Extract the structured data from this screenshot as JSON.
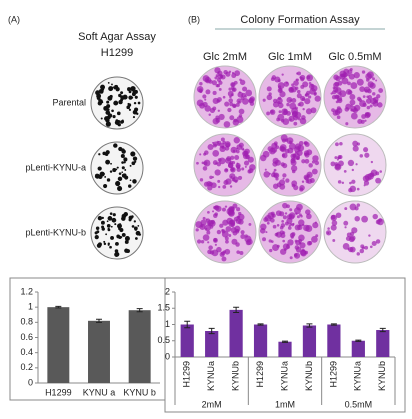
{
  "figure": {
    "panel_a": "(A)",
    "panel_b": "(B)",
    "title_a": "Soft Agar Assay",
    "subtitle_a": "H1299",
    "rows_a": [
      "Parental",
      "pLenti-KYNU-a",
      "pLenti-KYNU-b"
    ],
    "title_b": "Colony Formation Assay",
    "columns_b": [
      "Glc 2mM",
      "Glc 1mM",
      "Glc 0.5mM"
    ]
  },
  "chart_data": [
    {
      "type": "bar",
      "categories": [
        "H1299",
        "KYNU a",
        "KYNU b"
      ],
      "values": [
        1.0,
        0.82,
        0.96
      ],
      "errors": [
        0.01,
        0.02,
        0.02
      ],
      "color": "#595959",
      "ylim": [
        0,
        1.2
      ],
      "yticks": [
        0,
        0.2,
        0.4,
        0.6,
        0.8,
        1,
        1.2
      ],
      "grid": false
    },
    {
      "type": "bar",
      "categories": [
        "H1299",
        "KYNUa",
        "KYNUb",
        "H1299",
        "KYNUa",
        "KYNUb",
        "H1299",
        "KYNUa",
        "KYNUb"
      ],
      "groups": [
        "2mM",
        "1mM",
        "0.5mM"
      ],
      "values": [
        1.0,
        0.8,
        1.45,
        1.0,
        0.47,
        0.97,
        1.0,
        0.5,
        0.83
      ],
      "errors": [
        0.1,
        0.08,
        0.08,
        0.02,
        0.02,
        0.05,
        0.02,
        0.02,
        0.05
      ],
      "color": "#7030a0",
      "ylim": [
        0,
        2
      ],
      "yticks": [
        0,
        0.5,
        1,
        1.5,
        2
      ],
      "grid": false
    }
  ]
}
